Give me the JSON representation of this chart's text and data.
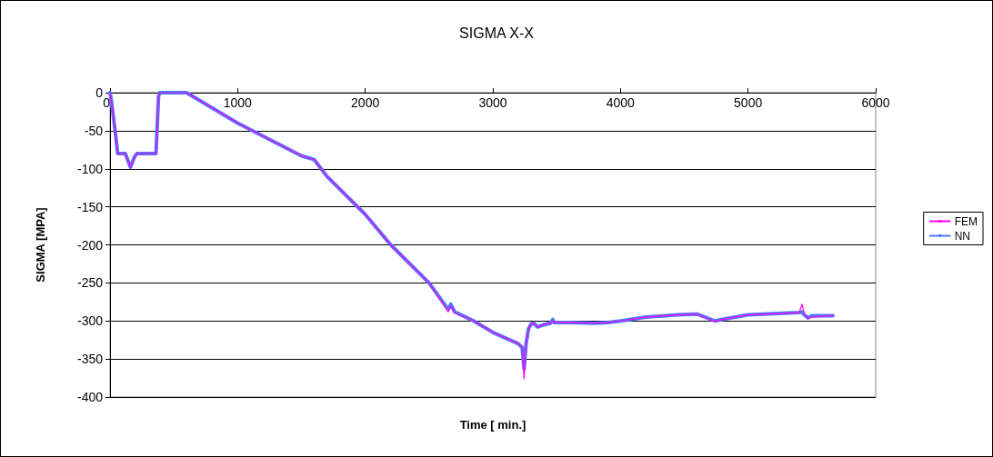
{
  "chart_data": {
    "type": "line",
    "title": "SIGMA X-X",
    "xlabel": "Time [ min.]",
    "ylabel": "SIGMA [MPA]",
    "xlim": [
      0,
      6000
    ],
    "xticks": [
      0,
      1000,
      2000,
      3000,
      4000,
      5000,
      6000
    ],
    "ylim": [
      -400,
      0
    ],
    "yticks": [
      -400,
      -350,
      -300,
      -250,
      -200,
      -150,
      -100,
      -50,
      0
    ],
    "grid": "y",
    "legend": "right",
    "marker": "none",
    "line_style": "solid",
    "series": [
      {
        "name": "FEM",
        "color": "#ff00ff",
        "x": [
          0,
          10,
          40,
          60,
          120,
          160,
          190,
          210,
          360,
          380,
          390,
          600,
          1000,
          1500,
          1600,
          1700,
          2000,
          2200,
          2500,
          2650,
          2670,
          2700,
          2850,
          3000,
          3200,
          3230,
          3245,
          3260,
          3280,
          3300,
          3320,
          3350,
          3400,
          3450,
          3470,
          3480,
          3600,
          3800,
          3900,
          4000,
          4200,
          4450,
          4600,
          4740,
          4800,
          5000,
          5400,
          5423,
          5440,
          5470,
          5500,
          5665
        ],
        "values": [
          0,
          -10,
          -50,
          -80,
          -80,
          -98,
          -85,
          -80,
          -80,
          -5,
          0,
          0,
          -40,
          -83,
          -88,
          -110,
          -160,
          -200,
          -250,
          -288,
          -280,
          -289,
          -300,
          -315,
          -330,
          -335,
          -376,
          -330,
          -310,
          -303,
          -303,
          -308,
          -305,
          -303,
          -300,
          -302,
          -302,
          -303,
          -302,
          -300,
          -295,
          -292,
          -291,
          -301,
          -298,
          -292,
          -289,
          -278,
          -290,
          -297,
          -295,
          -293
        ]
      },
      {
        "name": "NN",
        "color": "#4a7cf2",
        "x": [
          0,
          10,
          40,
          60,
          120,
          160,
          190,
          210,
          360,
          380,
          390,
          600,
          1000,
          1500,
          1600,
          1700,
          2000,
          2200,
          2500,
          2650,
          2670,
          2700,
          2850,
          3000,
          3200,
          3230,
          3245,
          3260,
          3280,
          3300,
          3320,
          3350,
          3400,
          3450,
          3470,
          3480,
          3600,
          3800,
          3900,
          4000,
          4200,
          4450,
          4600,
          4740,
          4800,
          5000,
          5400,
          5423,
          5440,
          5470,
          5500,
          5665
        ],
        "values": [
          0,
          -10,
          -50,
          -80,
          -80,
          -98,
          -85,
          -80,
          -80,
          -5,
          0,
          0,
          -40,
          -83,
          -88,
          -110,
          -160,
          -200,
          -250,
          -285,
          -278,
          -288,
          -300,
          -315,
          -330,
          -335,
          -363,
          -330,
          -310,
          -304,
          -303,
          -308,
          -305,
          -303,
          -298,
          -302,
          -302,
          -303,
          -302,
          -300,
          -295,
          -292,
          -291,
          -300,
          -298,
          -292,
          -289,
          -288,
          -292,
          -296,
          -293,
          -293
        ]
      }
    ]
  }
}
